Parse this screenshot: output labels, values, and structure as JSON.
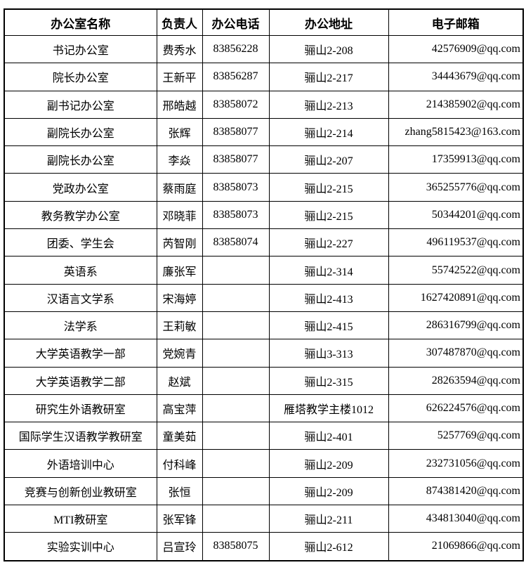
{
  "page": {
    "background_color": "#ffffff",
    "border_color": "#000000"
  },
  "table": {
    "columns": [
      {
        "key": "office_name",
        "label": "办公室名称"
      },
      {
        "key": "person_in_charge",
        "label": "负责人"
      },
      {
        "key": "office_phone",
        "label": "办公电话"
      },
      {
        "key": "office_address",
        "label": "办公地址"
      },
      {
        "key": "email",
        "label": "电子邮箱"
      }
    ],
    "rows": [
      [
        "书记办公室",
        "费秀水",
        "83856228",
        "骊山2-208",
        "42576909@qq.com"
      ],
      [
        "院长办公室",
        "王新平",
        "83856287",
        "骊山2-217",
        "34443679@qq.com"
      ],
      [
        "副书记办公室",
        "邢皓越",
        "83858072",
        "骊山2-213",
        "214385902@qq.com"
      ],
      [
        "副院长办公室",
        "张辉",
        "83858077",
        "骊山2-214",
        "zhang5815423@163.com"
      ],
      [
        "副院长办公室",
        "李焱",
        "83858077",
        "骊山2-207",
        "17359913@qq.com"
      ],
      [
        "党政办公室",
        "蔡雨庭",
        "83858073",
        "骊山2-215",
        "365255776@qq.com"
      ],
      [
        "教务教学办公室",
        "邓晓菲",
        "83858073",
        "骊山2-215",
        "50344201@qq.com"
      ],
      [
        "团委、学生会",
        "芮智刚",
        "83858074",
        "骊山2-227",
        "496119537@qq.com"
      ],
      [
        "英语系",
        "廉张军",
        "",
        "骊山2-314",
        "55742522@qq.com"
      ],
      [
        "汉语言文学系",
        "宋海婷",
        "",
        "骊山2-413",
        "1627420891@qq.com"
      ],
      [
        "法学系",
        "王莉敏",
        "",
        "骊山2-415",
        "286316799@qq.com"
      ],
      [
        "大学英语教学一部",
        "党婉青",
        "",
        "骊山3-313",
        "307487870@qq.com"
      ],
      [
        "大学英语教学二部",
        "赵斌",
        "",
        "骊山2-315",
        "28263594@qq.com"
      ],
      [
        "研究生外语教研室",
        "高宝萍",
        "",
        "雁塔教学主楼1012",
        "626224576@qq.com"
      ],
      [
        "国际学生汉语教学教研室",
        "童美茹",
        "",
        "骊山2-401",
        "5257769@qq.com"
      ],
      [
        "外语培训中心",
        "付科峰",
        "",
        "骊山2-209",
        "232731056@qq.com"
      ],
      [
        "竞赛与创新创业教研室",
        "张恒",
        "",
        "骊山2-209",
        "874381420@qq.com"
      ],
      [
        "MTI教研室",
        "张军锋",
        "",
        "骊山2-211",
        "434813040@qq.com"
      ],
      [
        "实验实训中心",
        "吕宣玲",
        "83858075",
        "骊山2-612",
        "21069866@qq.com"
      ]
    ]
  }
}
